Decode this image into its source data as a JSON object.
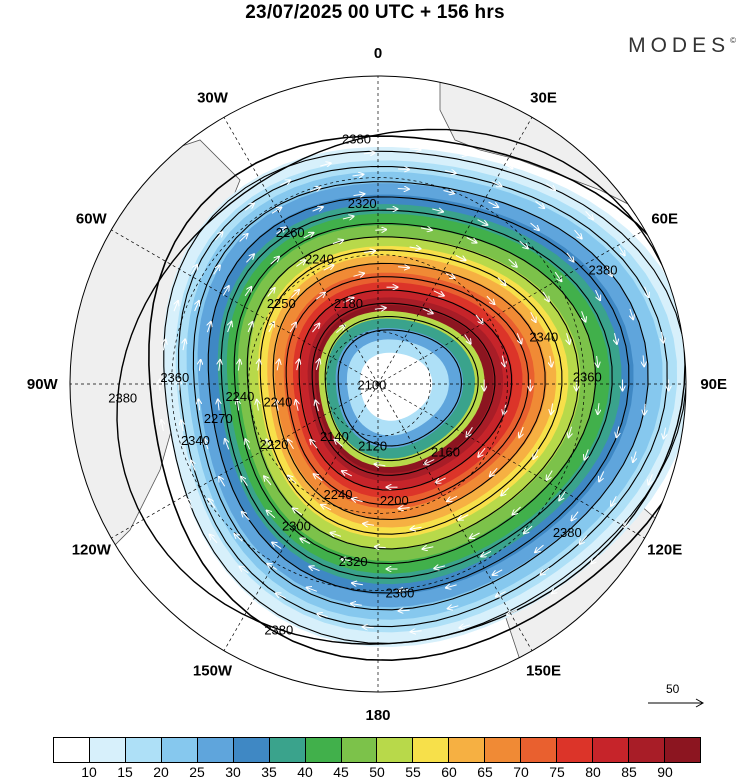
{
  "title": "23/07/2025  00 UTC  + 156 hrs",
  "brand": "MODES",
  "brand_mark": "©",
  "longitude_labels": [
    {
      "lon": 0,
      "text": "0"
    },
    {
      "lon": 30,
      "text": "30E"
    },
    {
      "lon": 60,
      "text": "60E"
    },
    {
      "lon": 90,
      "text": "90E"
    },
    {
      "lon": 120,
      "text": "120E"
    },
    {
      "lon": 150,
      "text": "150E"
    },
    {
      "lon": 180,
      "text": "180"
    },
    {
      "lon": -150,
      "text": "150W"
    },
    {
      "lon": -120,
      "text": "120W"
    },
    {
      "lon": -90,
      "text": "90W"
    },
    {
      "lon": -60,
      "text": "60W"
    },
    {
      "lon": -30,
      "text": "30W"
    }
  ],
  "contour_labels": [
    {
      "text": "2380",
      "lon": -5,
      "r": 0.8
    },
    {
      "text": "2380",
      "lon": 63,
      "r": 0.82
    },
    {
      "text": "2380",
      "lon": -93,
      "r": 0.83
    },
    {
      "text": "2380",
      "lon": 128,
      "r": 0.78
    },
    {
      "text": "2380",
      "lon": -158,
      "r": 0.86
    },
    {
      "text": "2360",
      "lon": -88,
      "r": 0.66
    },
    {
      "text": "2360",
      "lon": 88,
      "r": 0.68
    },
    {
      "text": "2360",
      "lon": 174,
      "r": 0.68
    },
    {
      "text": "2340",
      "lon": 74,
      "r": 0.56
    },
    {
      "text": "2340",
      "lon": -107,
      "r": 0.62
    },
    {
      "text": "2320",
      "lon": -5,
      "r": 0.59
    },
    {
      "text": "2320",
      "lon": -172,
      "r": 0.58
    },
    {
      "text": "2300",
      "lon": -150,
      "r": 0.53
    },
    {
      "text": "2270",
      "lon": -102,
      "r": 0.53
    },
    {
      "text": "2260",
      "lon": -30,
      "r": 0.57
    },
    {
      "text": "2250",
      "lon": -50,
      "r": 0.41
    },
    {
      "text": "2240",
      "lon": -25,
      "r": 0.45
    },
    {
      "text": "2240",
      "lon": -95,
      "r": 0.45
    },
    {
      "text": "2240",
      "lon": -100,
      "r": 0.33
    },
    {
      "text": "2240",
      "lon": -160,
      "r": 0.38
    },
    {
      "text": "2220",
      "lon": -120,
      "r": 0.39
    },
    {
      "text": "2200",
      "lon": 172,
      "r": 0.38
    },
    {
      "text": "2180",
      "lon": -20,
      "r": 0.28
    },
    {
      "text": "2160",
      "lon": 135,
      "r": 0.31
    },
    {
      "text": "2140",
      "lon": -140,
      "r": 0.22
    },
    {
      "text": "2120",
      "lon": 185,
      "r": 0.2
    },
    {
      "text": "2100",
      "lon": -95,
      "r": 0.02
    }
  ],
  "colorbar": {
    "labels": [
      "10",
      "15",
      "20",
      "25",
      "30",
      "35",
      "40",
      "45",
      "50",
      "55",
      "60",
      "65",
      "70",
      "75",
      "80",
      "85",
      "90"
    ],
    "colors": [
      "#ffffff",
      "#d7f0fb",
      "#aee0f7",
      "#86c8ee",
      "#5fa5dc",
      "#3f88c4",
      "#3aa38c",
      "#41b04b",
      "#7cc24a",
      "#b8d94a",
      "#f7e04a",
      "#f6b042",
      "#f08a35",
      "#e9602f",
      "#dc3429",
      "#c6242a",
      "#a81d27",
      "#8c1520"
    ]
  },
  "vector_scale": {
    "label": "50"
  }
}
